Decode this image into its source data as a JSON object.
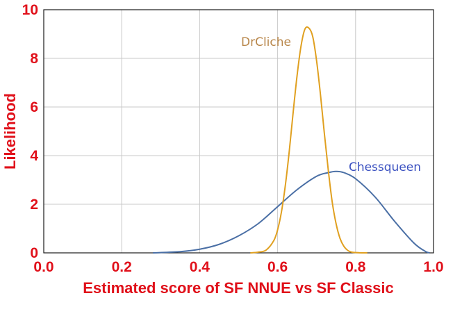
{
  "chart_data": {
    "type": "line",
    "title": "",
    "xlabel": "Estimated score of SF NNUE vs SF Classic",
    "ylabel": "Likelihood",
    "xlim": [
      0.0,
      1.0
    ],
    "ylim": [
      0,
      10
    ],
    "x_ticks": [
      "0.0",
      "0.2",
      "0.4",
      "0.6",
      "0.8",
      "1.0"
    ],
    "y_ticks": [
      "0",
      "2",
      "4",
      "6",
      "8",
      "10"
    ],
    "grid": true,
    "legend": "none",
    "series": [
      {
        "name": "DrCliche",
        "color": "#e0a020",
        "label_color": "#b8864a",
        "x": [
          0.53,
          0.55,
          0.57,
          0.59,
          0.6,
          0.61,
          0.62,
          0.63,
          0.64,
          0.65,
          0.66,
          0.67,
          0.68,
          0.69,
          0.7,
          0.71,
          0.72,
          0.73,
          0.74,
          0.75,
          0.76,
          0.77,
          0.78,
          0.79,
          0.81,
          0.83
        ],
        "y": [
          0.0,
          0.03,
          0.11,
          0.5,
          0.95,
          1.7,
          2.8,
          4.2,
          5.8,
          7.3,
          8.5,
          9.2,
          9.25,
          8.9,
          7.9,
          6.5,
          4.9,
          3.4,
          2.1,
          1.2,
          0.6,
          0.27,
          0.1,
          0.03,
          0.005,
          0.0
        ]
      },
      {
        "name": "Chessqueen",
        "color": "#4a6fa5",
        "label_color": "#3a50c0",
        "x": [
          0.28,
          0.35,
          0.4,
          0.45,
          0.5,
          0.55,
          0.6,
          0.65,
          0.7,
          0.73,
          0.75,
          0.77,
          0.8,
          0.85,
          0.9,
          0.95,
          0.98,
          0.99
        ],
        "y": [
          0.0,
          0.05,
          0.15,
          0.35,
          0.7,
          1.2,
          1.9,
          2.6,
          3.15,
          3.3,
          3.35,
          3.3,
          3.05,
          2.3,
          1.3,
          0.4,
          0.05,
          0.0
        ]
      }
    ]
  }
}
